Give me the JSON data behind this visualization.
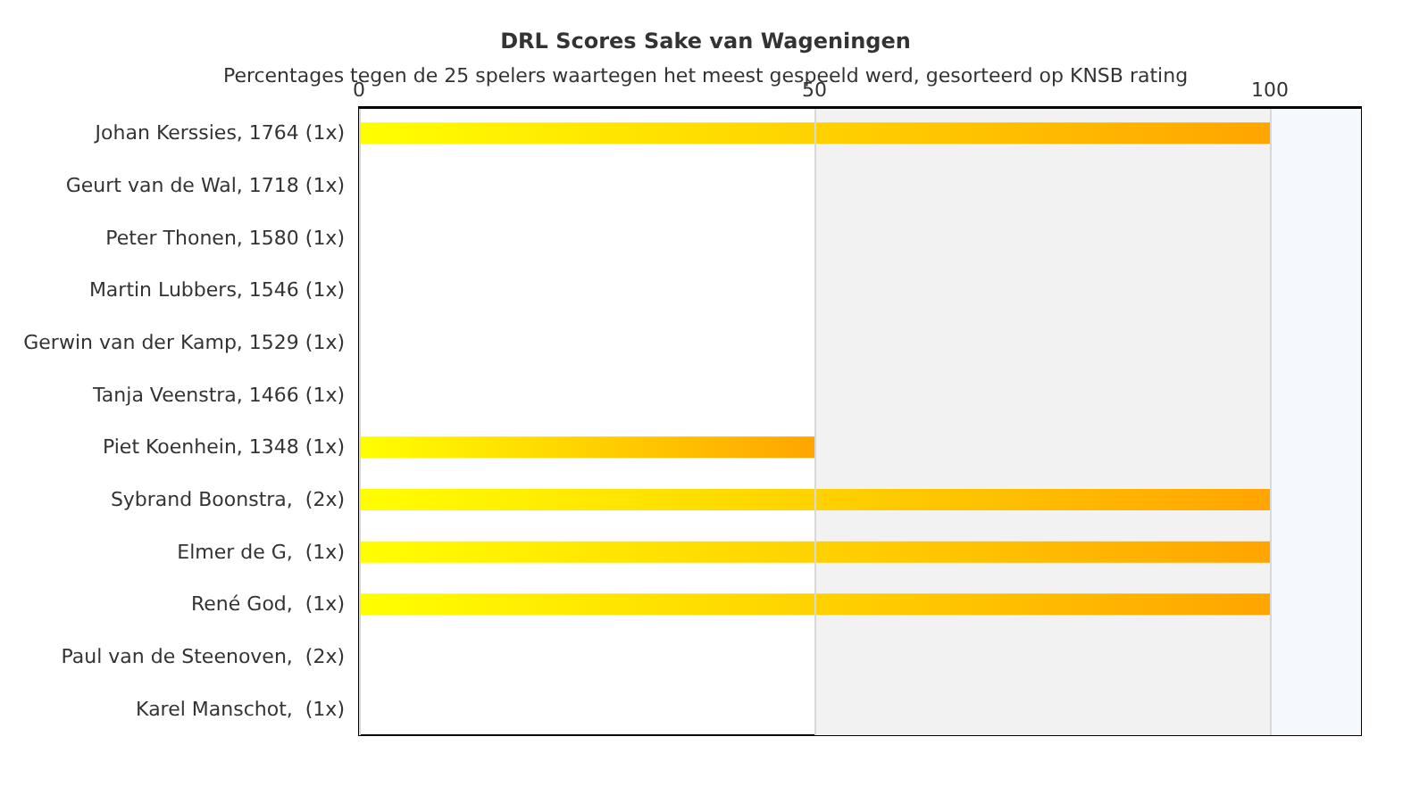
{
  "chart_data": {
    "type": "bar",
    "orientation": "horizontal",
    "title": "DRL Scores Sake van Wageningen",
    "subtitle": "Percentages tegen de 25 spelers waartegen het meest gespeeld werd, gesorteerd op KNSB rating",
    "categories": [
      "Johan Kerssies, 1764 (1x)",
      "Geurt van de Wal, 1718 (1x)",
      "Peter Thonen, 1580 (1x)",
      "Martin Lubbers, 1546 (1x)",
      "Gerwin van der Kamp, 1529 (1x)",
      "Tanja Veenstra, 1466 (1x)",
      "Piet Koenhein, 1348 (1x)",
      "Sybrand Boonstra,  (2x)",
      "Elmer de G,  (1x)",
      "René God,  (1x)",
      "Paul van de Steenoven,  (2x)",
      "Karel Manschot,  (1x)"
    ],
    "values": [
      100,
      0,
      0,
      0,
      0,
      0,
      50,
      100,
      100,
      100,
      0,
      0
    ],
    "color": "#ffa500",
    "xlim": [
      0,
      110
    ],
    "xticks": [
      0,
      50,
      100
    ],
    "grid": "x",
    "bands": [
      {
        "axis": "x",
        "from": 50,
        "to": 100,
        "color": "#f2f2f2"
      },
      {
        "axis": "x",
        "from": 100,
        "to": 110,
        "color": "#f5f8fc"
      }
    ]
  }
}
